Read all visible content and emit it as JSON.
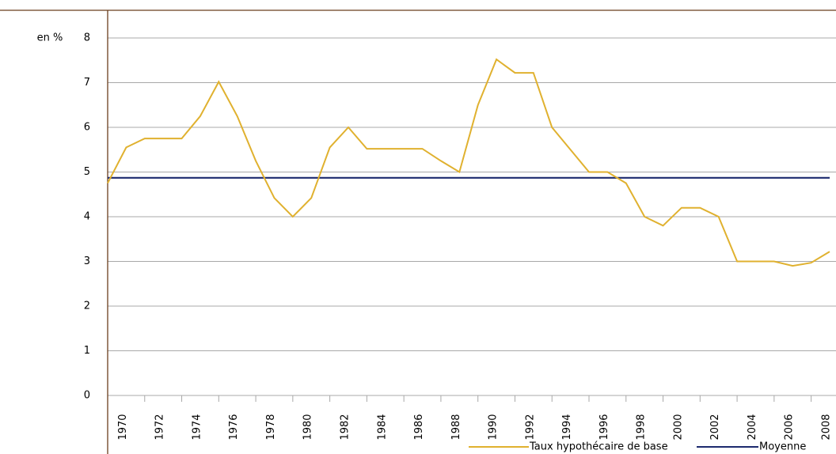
{
  "chart_data": {
    "type": "line",
    "y_label": "en %",
    "categories": [
      null,
      "1970",
      null,
      "1972",
      null,
      "1974",
      null,
      "1976",
      null,
      "1978",
      null,
      "1980",
      null,
      "1982",
      null,
      "1984",
      null,
      "1986",
      null,
      "1988",
      null,
      "1990",
      null,
      "1992",
      null,
      "1994",
      null,
      "1996",
      null,
      "1998",
      null,
      "2000",
      null,
      "2002",
      null,
      "2004",
      null,
      "2006",
      null,
      "2008"
    ],
    "series": [
      {
        "name": "Taux hypothécaire de base",
        "color": "#e0b12f",
        "values": [
          4.75,
          5.55,
          5.75,
          5.75,
          5.75,
          6.25,
          7.02,
          6.25,
          5.25,
          4.42,
          4.0,
          4.42,
          5.55,
          6.0,
          5.52,
          5.52,
          5.52,
          5.52,
          5.25,
          5.0,
          6.5,
          7.52,
          7.22,
          7.22,
          6.0,
          5.5,
          5.0,
          5.0,
          4.75,
          4.0,
          3.8,
          4.2,
          4.2,
          4.0,
          3.0,
          3.0,
          3.0,
          2.9,
          2.97,
          3.22
        ]
      },
      {
        "name": "Moyenne",
        "color": "#1c2a6e",
        "values": [
          4.87,
          4.87,
          4.87,
          4.87,
          4.87,
          4.87,
          4.87,
          4.87,
          4.87,
          4.87,
          4.87,
          4.87,
          4.87,
          4.87,
          4.87,
          4.87,
          4.87,
          4.87,
          4.87,
          4.87,
          4.87,
          4.87,
          4.87,
          4.87,
          4.87,
          4.87,
          4.87,
          4.87,
          4.87,
          4.87,
          4.87,
          4.87,
          4.87,
          4.87,
          4.87,
          4.87,
          4.87,
          4.87,
          4.87,
          4.87
        ]
      }
    ],
    "ylim": [
      0,
      8
    ],
    "yticks": [
      0,
      1,
      2,
      3,
      4,
      5,
      6,
      7,
      8
    ],
    "grid": true
  }
}
